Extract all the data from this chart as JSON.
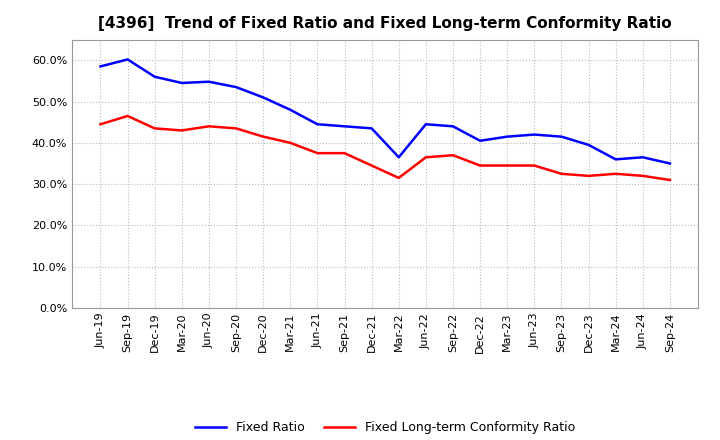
{
  "title": "[4396]  Trend of Fixed Ratio and Fixed Long-term Conformity Ratio",
  "x_labels": [
    "Jun-19",
    "Sep-19",
    "Dec-19",
    "Mar-20",
    "Jun-20",
    "Sep-20",
    "Dec-20",
    "Mar-21",
    "Jun-21",
    "Sep-21",
    "Dec-21",
    "Mar-22",
    "Jun-22",
    "Sep-22",
    "Dec-22",
    "Mar-23",
    "Jun-23",
    "Sep-23",
    "Dec-23",
    "Mar-24",
    "Jun-24",
    "Sep-24"
  ],
  "fixed_ratio": [
    58.5,
    60.2,
    56.0,
    54.5,
    54.8,
    53.5,
    51.0,
    48.0,
    44.5,
    44.0,
    43.5,
    36.5,
    44.5,
    44.0,
    40.5,
    41.5,
    42.0,
    41.5,
    39.5,
    36.0,
    36.5,
    35.0
  ],
  "fixed_lt_ratio": [
    44.5,
    46.5,
    43.5,
    43.0,
    44.0,
    43.5,
    41.5,
    40.0,
    37.5,
    37.5,
    34.5,
    31.5,
    36.5,
    37.0,
    34.5,
    34.5,
    34.5,
    32.5,
    32.0,
    32.5,
    32.0,
    31.0
  ],
  "fixed_ratio_color": "#0000FF",
  "fixed_lt_ratio_color": "#FF0000",
  "bg_color": "#FFFFFF",
  "plot_bg_color": "#FFFFFF",
  "grid_color": "#BBBBBB",
  "ylim": [
    0,
    65
  ],
  "yticks": [
    0.0,
    10.0,
    20.0,
    30.0,
    40.0,
    50.0,
    60.0
  ],
  "legend_fixed_ratio": "Fixed Ratio",
  "legend_fixed_lt_ratio": "Fixed Long-term Conformity Ratio",
  "line_width": 1.8,
  "title_fontsize": 11,
  "tick_fontsize": 8,
  "legend_fontsize": 9
}
